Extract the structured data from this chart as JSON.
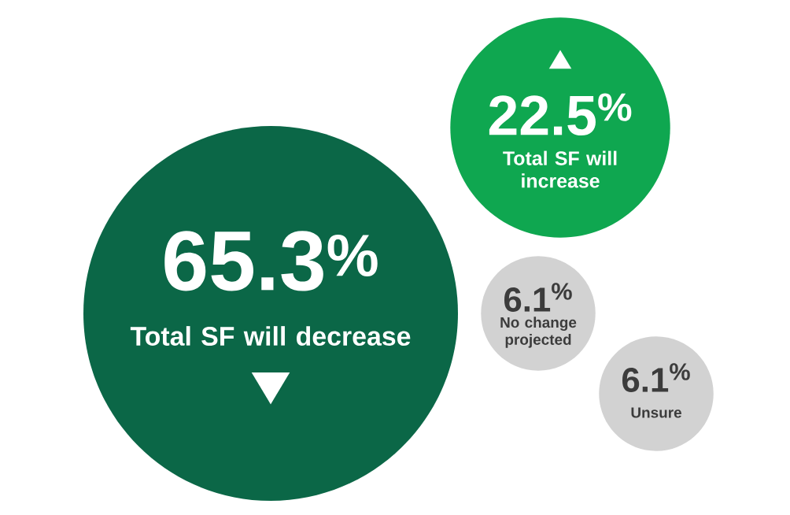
{
  "chart_data": {
    "type": "other",
    "categories": [
      "Total SF will decrease",
      "Total SF will increase",
      "No change projected",
      "Unsure"
    ],
    "values": [
      65.3,
      22.5,
      6.1,
      6.1
    ],
    "value_labels": [
      "65.3$^{%}$",
      "22.5$^{%}$",
      "6.1$^{%}$",
      "6.1$^{%}$"
    ],
    "colors": [
      "#0b6747",
      "#0fa750",
      "#d2d2d2",
      "#d2d2d2"
    ]
  }
}
